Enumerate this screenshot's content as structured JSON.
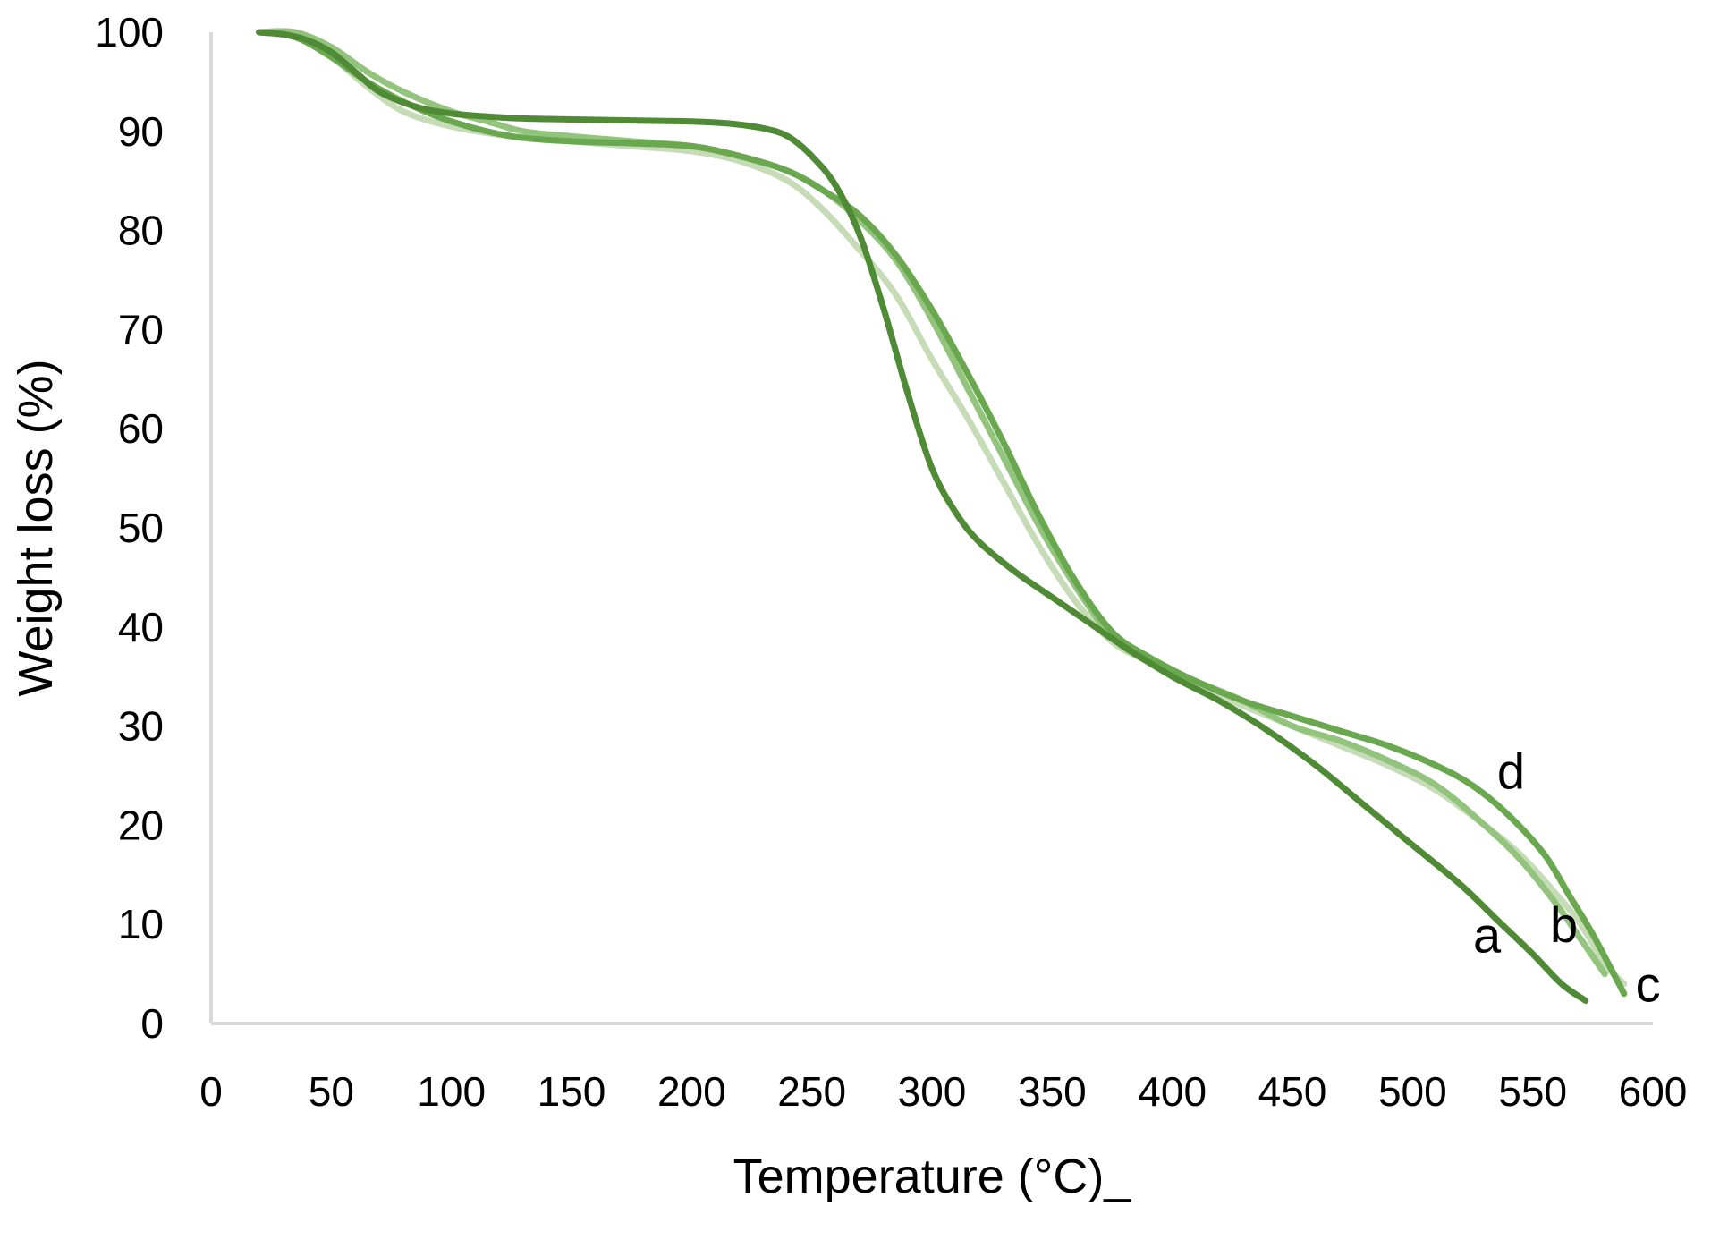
{
  "chart_data": {
    "type": "line",
    "title": "",
    "xlabel": "Temperature (°C)_",
    "ylabel": "Weight loss (%)",
    "xlim": [
      0,
      600
    ],
    "ylim": [
      0,
      100
    ],
    "xticks": [
      0,
      50,
      100,
      150,
      200,
      250,
      300,
      350,
      400,
      450,
      500,
      550,
      600
    ],
    "yticks": [
      0,
      10,
      20,
      30,
      40,
      50,
      60,
      70,
      80,
      90,
      100
    ],
    "grid": false,
    "legend": "none",
    "series": [
      {
        "name": "c",
        "color": "#c5dcb7",
        "x": [
          20,
          35,
          50,
          65,
          80,
          100,
          125,
          150,
          175,
          200,
          220,
          240,
          255,
          270,
          285,
          300,
          315,
          330,
          345,
          360,
          375,
          390,
          410,
          430,
          450,
          470,
          490,
          510,
          530,
          545,
          560,
          570,
          580,
          588
        ],
        "y": [
          100,
          99.5,
          97.5,
          94.5,
          92,
          90.5,
          89.5,
          89,
          88.5,
          88,
          87,
          85,
          82,
          78,
          73.5,
          67,
          61,
          54.5,
          48,
          42.5,
          38.5,
          36.5,
          34,
          32,
          30,
          28,
          26,
          23.5,
          20,
          17,
          13,
          10,
          6,
          4
        ]
      },
      {
        "name": "b",
        "color": "#93c47d",
        "x": [
          20,
          35,
          50,
          65,
          80,
          100,
          115,
          130,
          150,
          175,
          200,
          220,
          240,
          255,
          270,
          285,
          300,
          315,
          330,
          345,
          360,
          375,
          390,
          410,
          430,
          450,
          470,
          490,
          510,
          530,
          545,
          560,
          570,
          580
        ],
        "y": [
          100,
          100,
          98.5,
          96,
          94,
          92,
          91,
          90,
          89.5,
          89,
          88.5,
          87.5,
          86,
          84,
          81,
          77,
          71,
          64,
          57,
          50,
          44,
          39,
          36.5,
          34.5,
          32.5,
          30,
          28.5,
          26.5,
          24,
          20,
          16.5,
          12,
          8.5,
          5
        ]
      },
      {
        "name": "d",
        "color": "#6aa84f",
        "x": [
          20,
          35,
          50,
          65,
          80,
          100,
          125,
          150,
          175,
          200,
          220,
          240,
          255,
          270,
          285,
          300,
          315,
          330,
          345,
          360,
          375,
          390,
          410,
          430,
          450,
          470,
          490,
          510,
          525,
          540,
          555,
          565,
          575,
          588
        ],
        "y": [
          100,
          99.5,
          97.5,
          95,
          93,
          91,
          89.5,
          89,
          88.8,
          88.5,
          87.5,
          86,
          84,
          81.5,
          77.5,
          72,
          65.5,
          58.5,
          51,
          44.5,
          39.5,
          37,
          34.5,
          32.5,
          31,
          29.5,
          28,
          26,
          24,
          21,
          17,
          13,
          9,
          3
        ]
      },
      {
        "name": "a",
        "color": "#4f8a34",
        "x": [
          20,
          30,
          40,
          50,
          60,
          70,
          85,
          100,
          115,
          130,
          150,
          175,
          200,
          215,
          230,
          240,
          250,
          260,
          270,
          280,
          290,
          300,
          310,
          320,
          335,
          350,
          365,
          380,
          400,
          420,
          440,
          460,
          480,
          500,
          520,
          535,
          550,
          562,
          572
        ],
        "y": [
          100,
          99.8,
          99.2,
          98,
          96,
          94,
          92.5,
          91.8,
          91.5,
          91.3,
          91.2,
          91.1,
          91,
          90.8,
          90.3,
          89.5,
          87.5,
          84.5,
          79.5,
          72,
          63.5,
          56,
          51.5,
          48.5,
          45.5,
          43,
          40.5,
          38,
          35,
          32.5,
          29.5,
          26,
          22,
          18,
          14,
          10.5,
          7,
          4,
          2.3
        ]
      }
    ],
    "annotations": [
      {
        "text": "d",
        "x": 541,
        "y": 25.5
      },
      {
        "text": "b",
        "x": 563,
        "y": 10
      },
      {
        "text": "a",
        "x": 531,
        "y": 9
      },
      {
        "text": "c",
        "x": 598,
        "y": 4
      }
    ]
  }
}
